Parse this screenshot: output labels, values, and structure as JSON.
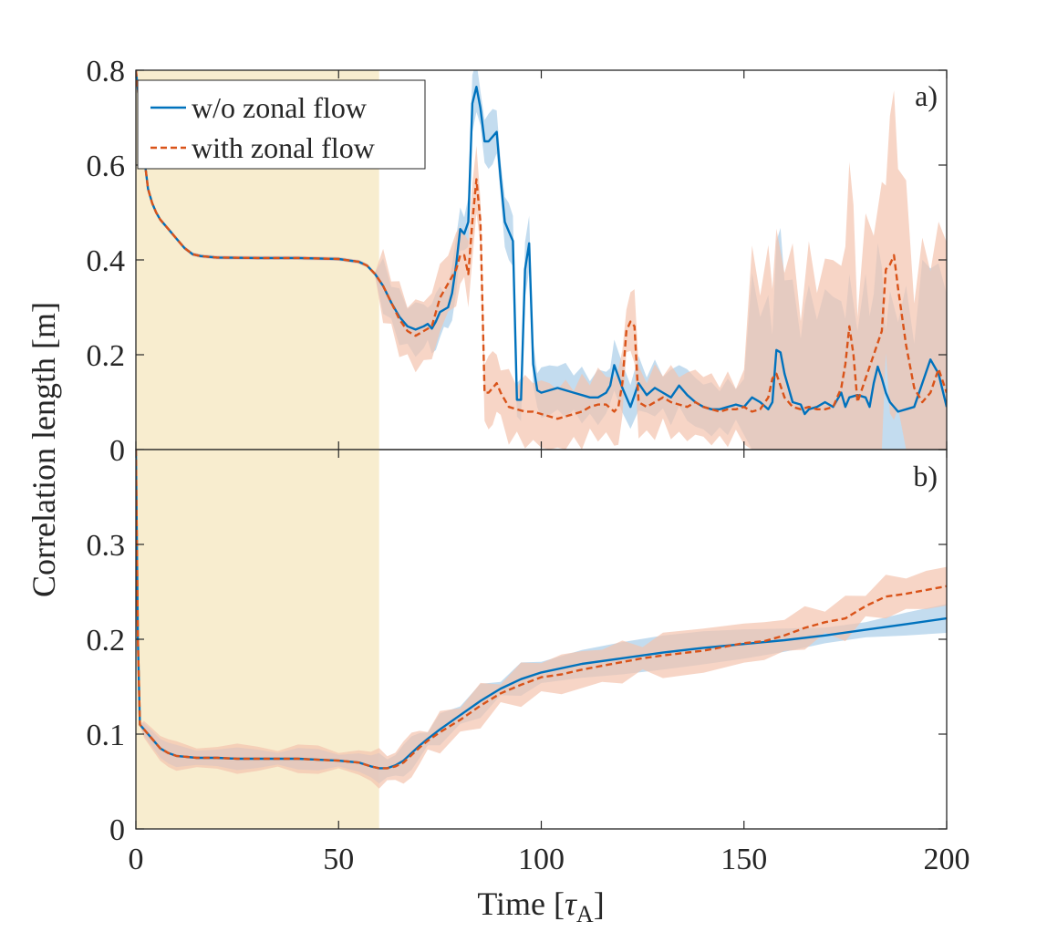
{
  "chart_data": [
    {
      "panel_label": "a)",
      "type": "line",
      "ylim": [
        0,
        0.8
      ],
      "yticks": [
        "0",
        "0.2",
        "0.4",
        "0.6",
        "0.8"
      ],
      "xlim": [
        0,
        200
      ],
      "shaded_region": [
        0,
        60
      ],
      "legend": {
        "position": "top-left",
        "entries": [
          "w/o zonal flow",
          "with zonal flow"
        ]
      },
      "series": [
        {
          "name": "w/o zonal flow",
          "color": "#0072BD",
          "dash": "solid",
          "x": [
            0,
            1,
            2,
            3,
            4,
            5,
            6,
            8,
            10,
            12,
            14,
            16,
            20,
            30,
            40,
            50,
            55,
            57,
            59,
            61,
            63,
            65,
            67,
            69,
            71,
            72,
            73,
            74,
            75,
            76,
            77,
            78,
            79,
            80,
            81,
            82,
            83,
            84,
            85,
            86,
            87,
            88,
            89,
            90,
            91,
            92,
            93,
            94,
            95,
            96,
            97,
            98,
            99,
            100,
            102,
            104,
            106,
            108,
            110,
            112,
            114,
            116,
            117,
            118,
            120,
            122,
            124,
            126,
            128,
            130,
            132,
            134,
            136,
            138,
            140,
            142,
            144,
            146,
            148,
            150,
            152,
            154,
            156,
            157,
            158,
            159,
            160,
            162,
            164,
            165,
            166,
            168,
            170,
            172,
            174,
            175,
            176,
            178,
            180,
            181,
            182,
            183,
            184,
            185,
            186,
            188,
            190,
            192,
            194,
            196,
            198,
            200
          ],
          "y": [
            0.8,
            0.72,
            0.62,
            0.55,
            0.52,
            0.5,
            0.485,
            0.465,
            0.445,
            0.425,
            0.412,
            0.408,
            0.405,
            0.404,
            0.404,
            0.402,
            0.396,
            0.388,
            0.37,
            0.345,
            0.31,
            0.28,
            0.26,
            0.253,
            0.26,
            0.265,
            0.255,
            0.27,
            0.29,
            0.295,
            0.3,
            0.33,
            0.39,
            0.465,
            0.455,
            0.48,
            0.73,
            0.765,
            0.72,
            0.65,
            0.65,
            0.66,
            0.67,
            0.57,
            0.48,
            0.46,
            0.44,
            0.105,
            0.105,
            0.38,
            0.435,
            0.18,
            0.125,
            0.12,
            0.125,
            0.13,
            0.125,
            0.12,
            0.115,
            0.11,
            0.11,
            0.12,
            0.135,
            0.178,
            0.13,
            0.09,
            0.14,
            0.115,
            0.13,
            0.12,
            0.11,
            0.135,
            0.115,
            0.1,
            0.09,
            0.085,
            0.085,
            0.09,
            0.095,
            0.09,
            0.11,
            0.1,
            0.085,
            0.1,
            0.21,
            0.205,
            0.16,
            0.1,
            0.095,
            0.075,
            0.085,
            0.09,
            0.1,
            0.09,
            0.12,
            0.09,
            0.11,
            0.115,
            0.11,
            0.09,
            0.14,
            0.175,
            0.15,
            0.12,
            0.1,
            0.08,
            0.085,
            0.09,
            0.14,
            0.19,
            0.16,
            0.09
          ]
        },
        {
          "name": "with zonal flow",
          "color": "#D95319",
          "dash": "dashed",
          "x": [
            0,
            1,
            2,
            3,
            4,
            5,
            6,
            8,
            10,
            12,
            14,
            16,
            20,
            30,
            40,
            50,
            55,
            57,
            59,
            61,
            63,
            65,
            67,
            69,
            71,
            73,
            75,
            77,
            79,
            80,
            81,
            82,
            83,
            84,
            85,
            86,
            87,
            88,
            89,
            90,
            92,
            94,
            96,
            98,
            100,
            102,
            104,
            106,
            108,
            110,
            112,
            114,
            116,
            118,
            119,
            120,
            121,
            122,
            123,
            124,
            126,
            128,
            130,
            132,
            134,
            136,
            138,
            140,
            142,
            144,
            146,
            148,
            150,
            152,
            154,
            156,
            157,
            158,
            160,
            162,
            164,
            166,
            168,
            170,
            172,
            174,
            175,
            176,
            177,
            178,
            180,
            182,
            184,
            185,
            186,
            187,
            188,
            190,
            192,
            194,
            196,
            198,
            200
          ],
          "y": [
            0.8,
            0.72,
            0.62,
            0.55,
            0.52,
            0.5,
            0.485,
            0.465,
            0.445,
            0.425,
            0.412,
            0.408,
            0.405,
            0.404,
            0.404,
            0.402,
            0.396,
            0.388,
            0.37,
            0.345,
            0.31,
            0.275,
            0.25,
            0.24,
            0.25,
            0.26,
            0.32,
            0.35,
            0.38,
            0.41,
            0.41,
            0.37,
            0.48,
            0.57,
            0.48,
            0.12,
            0.12,
            0.13,
            0.14,
            0.12,
            0.09,
            0.085,
            0.08,
            0.08,
            0.075,
            0.07,
            0.065,
            0.07,
            0.075,
            0.08,
            0.09,
            0.095,
            0.095,
            0.08,
            0.09,
            0.14,
            0.25,
            0.27,
            0.26,
            0.1,
            0.09,
            0.1,
            0.11,
            0.1,
            0.095,
            0.09,
            0.1,
            0.09,
            0.085,
            0.08,
            0.085,
            0.085,
            0.09,
            0.08,
            0.085,
            0.11,
            0.15,
            0.16,
            0.11,
            0.09,
            0.085,
            0.09,
            0.085,
            0.085,
            0.09,
            0.13,
            0.18,
            0.26,
            0.2,
            0.1,
            0.15,
            0.2,
            0.25,
            0.38,
            0.39,
            0.41,
            0.34,
            0.22,
            0.13,
            0.1,
            0.12,
            0.17,
            0.12
          ]
        }
      ]
    },
    {
      "panel_label": "b)",
      "type": "line",
      "ylim": [
        0,
        0.4
      ],
      "yticks": [
        "0",
        "0.1",
        "0.2",
        "0.3"
      ],
      "xlim": [
        0,
        200
      ],
      "xticks": [
        "0",
        "50",
        "100",
        "150",
        "200"
      ],
      "shaded_region": [
        0,
        60
      ],
      "series": [
        {
          "name": "w/o zonal flow",
          "color": "#0072BD",
          "dash": "solid",
          "x": [
            0,
            0.5,
            1,
            2,
            4,
            6,
            8,
            10,
            15,
            20,
            25,
            30,
            35,
            40,
            45,
            50,
            55,
            58,
            60,
            62,
            64,
            66,
            68,
            70,
            72,
            75,
            80,
            85,
            90,
            95,
            100,
            110,
            120,
            130,
            140,
            150,
            160,
            170,
            180,
            190,
            200
          ],
          "y": [
            0.4,
            0.2,
            0.11,
            0.105,
            0.095,
            0.085,
            0.08,
            0.077,
            0.075,
            0.075,
            0.074,
            0.074,
            0.074,
            0.074,
            0.073,
            0.072,
            0.07,
            0.066,
            0.064,
            0.064,
            0.067,
            0.072,
            0.08,
            0.088,
            0.095,
            0.105,
            0.12,
            0.135,
            0.148,
            0.158,
            0.165,
            0.174,
            0.18,
            0.186,
            0.191,
            0.195,
            0.199,
            0.204,
            0.21,
            0.216,
            0.222
          ]
        },
        {
          "name": "with zonal flow",
          "color": "#D95319",
          "dash": "dashed",
          "x": [
            0,
            0.5,
            1,
            2,
            4,
            6,
            8,
            10,
            15,
            20,
            25,
            30,
            35,
            40,
            45,
            50,
            55,
            58,
            60,
            62,
            64,
            66,
            68,
            70,
            72,
            75,
            80,
            85,
            90,
            95,
            100,
            105,
            110,
            115,
            120,
            125,
            130,
            140,
            150,
            155,
            160,
            165,
            170,
            175,
            180,
            185,
            190,
            195,
            200
          ],
          "y": [
            0.4,
            0.2,
            0.11,
            0.105,
            0.095,
            0.085,
            0.08,
            0.077,
            0.075,
            0.075,
            0.074,
            0.074,
            0.074,
            0.074,
            0.073,
            0.072,
            0.07,
            0.066,
            0.064,
            0.064,
            0.066,
            0.07,
            0.078,
            0.086,
            0.093,
            0.102,
            0.115,
            0.13,
            0.143,
            0.152,
            0.16,
            0.163,
            0.168,
            0.172,
            0.176,
            0.18,
            0.183,
            0.188,
            0.196,
            0.198,
            0.204,
            0.212,
            0.218,
            0.222,
            0.235,
            0.245,
            0.248,
            0.252,
            0.256
          ]
        }
      ]
    }
  ],
  "axes": {
    "ylabel": "Correlation length [m]",
    "xlabel_main": "Time [",
    "xlabel_tau": "τ",
    "xlabel_sub": "A",
    "xlabel_close": "]"
  },
  "colors": {
    "shade": "#F8EDCF",
    "blue": "#0072BD",
    "orange": "#D95319",
    "blue_band": "#AACDE8",
    "orange_band": "#F3C3AE"
  }
}
